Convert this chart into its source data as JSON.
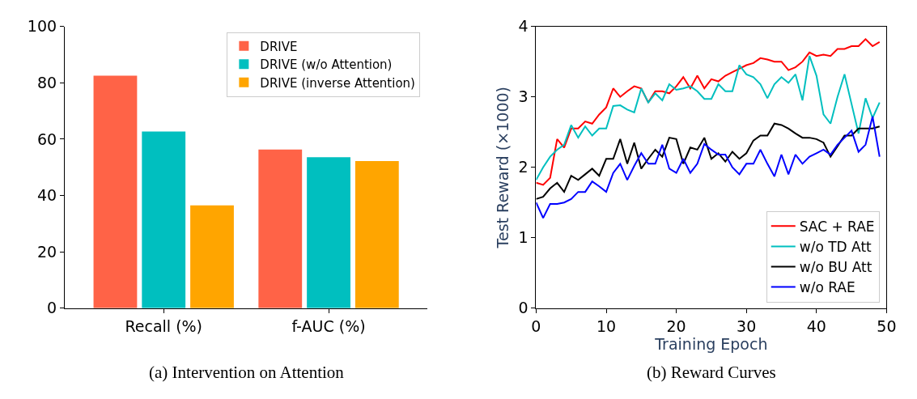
{
  "chart_data": [
    {
      "type": "bar",
      "title": "(a) Intervention on Attention",
      "categories": [
        "Recall (%)",
        "f-AUC (%)"
      ],
      "series": [
        {
          "name": "DRIVE",
          "color": "#ff6347",
          "values": [
            82.5,
            56.3
          ]
        },
        {
          "name": "DRIVE (w/o Attention)",
          "color": "#00bfbf",
          "values": [
            62.7,
            53.6
          ]
        },
        {
          "name": "DRIVE (inverse Attention)",
          "color": "#ffa500",
          "values": [
            36.5,
            52.2
          ]
        }
      ],
      "ylim": [
        0,
        100
      ],
      "yticks": [
        0,
        20,
        40,
        60,
        80,
        100
      ],
      "legend": "top right"
    },
    {
      "type": "line",
      "title": "(b) Reward Curves",
      "xlabel": "Training Epoch",
      "ylabel": "Test Reward (×1000)",
      "x": [
        0,
        1,
        2,
        3,
        4,
        5,
        6,
        7,
        8,
        9,
        10,
        11,
        12,
        13,
        14,
        15,
        16,
        17,
        18,
        19,
        20,
        21,
        22,
        23,
        24,
        25,
        26,
        27,
        28,
        29,
        30,
        31,
        32,
        33,
        34,
        35,
        36,
        37,
        38,
        39,
        40,
        41,
        42,
        43,
        44,
        45,
        46,
        47,
        48,
        49
      ],
      "series": [
        {
          "name": "SAC + RAE",
          "color": "#ff0000",
          "values": [
            1.78,
            1.75,
            1.85,
            2.4,
            2.28,
            2.55,
            2.55,
            2.65,
            2.62,
            2.75,
            2.85,
            3.12,
            3.0,
            3.08,
            3.15,
            3.12,
            2.92,
            3.08,
            3.08,
            3.05,
            3.15,
            3.28,
            3.12,
            3.3,
            3.12,
            3.25,
            3.22,
            3.3,
            3.35,
            3.4,
            3.45,
            3.48,
            3.55,
            3.53,
            3.5,
            3.5,
            3.38,
            3.42,
            3.5,
            3.63,
            3.58,
            3.6,
            3.58,
            3.68,
            3.68,
            3.72,
            3.72,
            3.82,
            3.72,
            3.78
          ]
        },
        {
          "name": "w/o TD Att",
          "color": "#00bfbf",
          "values": [
            1.82,
            2.0,
            2.15,
            2.25,
            2.32,
            2.6,
            2.42,
            2.58,
            2.45,
            2.55,
            2.55,
            2.87,
            2.88,
            2.82,
            2.78,
            3.12,
            2.92,
            3.05,
            2.95,
            3.18,
            3.1,
            3.12,
            3.15,
            3.08,
            2.97,
            2.97,
            3.18,
            3.08,
            3.08,
            3.45,
            3.32,
            3.28,
            3.18,
            2.98,
            3.18,
            3.28,
            3.2,
            3.32,
            2.95,
            3.58,
            3.3,
            2.75,
            2.62,
            3.0,
            3.32,
            2.9,
            2.48,
            2.98,
            2.7,
            2.92
          ]
        },
        {
          "name": "w/o BU Att",
          "color": "#000000",
          "values": [
            1.55,
            1.58,
            1.7,
            1.78,
            1.65,
            1.88,
            1.82,
            1.9,
            1.98,
            1.88,
            2.12,
            2.12,
            2.4,
            2.05,
            2.35,
            1.98,
            2.12,
            2.25,
            2.15,
            2.42,
            2.4,
            2.05,
            2.28,
            2.25,
            2.42,
            2.12,
            2.2,
            2.08,
            2.22,
            2.12,
            2.2,
            2.38,
            2.45,
            2.45,
            2.62,
            2.6,
            2.55,
            2.48,
            2.42,
            2.42,
            2.4,
            2.35,
            2.15,
            2.3,
            2.45,
            2.45,
            2.55,
            2.55,
            2.55,
            2.58
          ]
        },
        {
          "name": "w/o RAE",
          "color": "#0000ff",
          "values": [
            1.5,
            1.28,
            1.48,
            1.48,
            1.5,
            1.55,
            1.65,
            1.65,
            1.8,
            1.73,
            1.65,
            1.92,
            2.05,
            1.82,
            2.02,
            2.2,
            2.05,
            2.05,
            2.32,
            1.98,
            1.92,
            2.12,
            1.92,
            2.05,
            2.33,
            2.25,
            2.18,
            2.18,
            2.0,
            1.9,
            2.05,
            2.05,
            2.25,
            2.05,
            1.87,
            2.18,
            1.9,
            2.18,
            2.05,
            2.15,
            2.2,
            2.25,
            2.18,
            2.32,
            2.42,
            2.52,
            2.22,
            2.32,
            2.72,
            2.15
          ]
        }
      ],
      "xlim": [
        0,
        50
      ],
      "xticks": [
        0,
        10,
        20,
        30,
        40,
        50
      ],
      "ylim": [
        0,
        4
      ],
      "yticks": [
        0,
        1,
        2,
        3,
        4
      ],
      "legend": "bottom right"
    }
  ]
}
